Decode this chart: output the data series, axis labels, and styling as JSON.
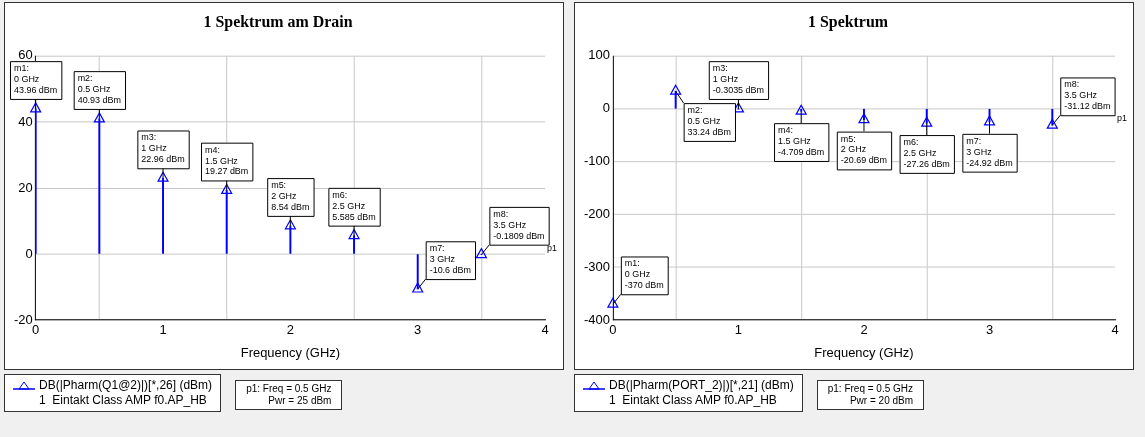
{
  "chart_data": [
    {
      "type": "lollipop",
      "title": "1 Spektrum am Drain",
      "xlabel": "Frequency (GHz)",
      "x": [
        0,
        0.5,
        1,
        1.5,
        2,
        2.5,
        3,
        3.5
      ],
      "series": [
        {
          "name": "DB(|Pharm(Q1@2)|)[*,26] (dBm)",
          "color": "#0000ff",
          "values": [
            43.96,
            40.93,
            22.96,
            19.27,
            8.54,
            5.585,
            -10.6,
            -0.1809
          ]
        }
      ],
      "xlim": [
        0,
        4
      ],
      "xticks": [
        0,
        1,
        2,
        3,
        4
      ],
      "ylim": [
        -20,
        60
      ],
      "yticks": [
        -20,
        0,
        20,
        40,
        60
      ],
      "grid": true,
      "legend": "bottom",
      "marker": "triangle",
      "annotations": [
        "p1",
        "1  Eintakt Class AMP f0.AP_HB",
        "p1: Freq = 0.5 GHz\nPwr = 25 dBm",
        {
          "text": "m1:\n0 GHz\n43.96 dBm",
          "x": 0,
          "y": 43.96
        },
        {
          "text": "m2:\n0.5 GHz\n40.93 dBm",
          "x": 0.5,
          "y": 40.93
        },
        {
          "text": "m3:\n1 GHz\n22.96 dBm",
          "x": 1,
          "y": 22.96
        },
        {
          "text": "m4:\n1.5 GHz\n19.27 dBm",
          "x": 1.5,
          "y": 19.27
        },
        {
          "text": "m5:\n2 GHz\n8.54 dBm",
          "x": 2,
          "y": 8.54
        },
        {
          "text": "m6:\n2.5 GHz\n5.585 dBm",
          "x": 2.5,
          "y": 5.585
        },
        {
          "text": "m7:\n3 GHz\n-10.6 dBm",
          "x": 3,
          "y": -10.6
        },
        {
          "text": "m8:\n3.5 GHz\n-0.1809 dBm",
          "x": 3.5,
          "y": -0.1809
        }
      ]
    },
    {
      "type": "lollipop",
      "title": "1 Spektrum",
      "xlabel": "Frequency (GHz)",
      "x": [
        0,
        0.5,
        1,
        1.5,
        2,
        2.5,
        3,
        3.5
      ],
      "series": [
        {
          "name": "DB(|Pharm(PORT_2)|)[*,21] (dBm)",
          "color": "#0000ff",
          "values": [
            -370,
            33.24,
            -0.3035,
            -4.709,
            -20.69,
            -27.26,
            -24.92,
            -31.12
          ]
        }
      ],
      "xlim": [
        0,
        4
      ],
      "xticks": [
        0,
        1,
        2,
        3,
        4
      ],
      "ylim": [
        -400,
        100
      ],
      "yticks": [
        -400,
        -300,
        -200,
        -100,
        0,
        100
      ],
      "grid": true,
      "legend": "bottom",
      "marker": "triangle",
      "annotations": [
        "p1",
        "1  Eintakt Class AMP f0.AP_HB",
        "p1: Freq = 0.5 GHz\nPwr = 20 dBm",
        {
          "text": "m1:\n0 GHz\n-370 dBm",
          "x": 0,
          "y": -370
        },
        {
          "text": "m2:\n0.5 GHz\n33.24 dBm",
          "x": 0.5,
          "y": 33.24
        },
        {
          "text": "m3:\n1 GHz\n-0.3035 dBm",
          "x": 1,
          "y": -0.3035
        },
        {
          "text": "m4:\n1.5 GHz\n-4.709 dBm",
          "x": 1.5,
          "y": -4.709
        },
        {
          "text": "m5:\n2 GHz\n-20.69 dBm",
          "x": 2,
          "y": -20.69
        },
        {
          "text": "m6:\n2.5 GHz\n-27.26 dBm",
          "x": 2.5,
          "y": -27.26
        },
        {
          "text": "m7:\n3 GHz\n-24.92 dBm",
          "x": 3,
          "y": -24.92
        },
        {
          "text": "m8:\n3.5 GHz\n-31.12 dBm",
          "x": 3.5,
          "y": -31.12
        }
      ]
    }
  ]
}
